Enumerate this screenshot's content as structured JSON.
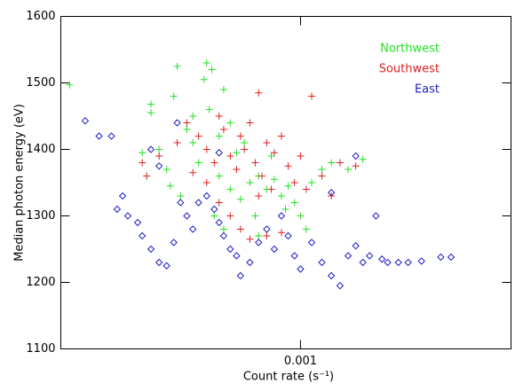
{
  "chart_data": {
    "type": "scatter",
    "x_label": "Count rate (s⁻¹)",
    "y_label": "Median photon energy (eV)",
    "xscale": "log",
    "xlim": [
      0.00013,
      0.006
    ],
    "xticks": [
      0.001
    ],
    "ylim": [
      1100,
      1600
    ],
    "yticks": [
      1100,
      1200,
      1300,
      1400,
      1500,
      1600
    ],
    "legend": "upper right",
    "series": [
      {
        "name": "Northwest",
        "color": "#22e022",
        "marker": "plus",
        "x": [
          0.00014,
          0.00028,
          0.00028,
          0.00035,
          0.00045,
          0.00047,
          0.00044,
          0.00052,
          0.00038,
          0.0004,
          0.00042,
          0.0003,
          0.00032,
          0.00033,
          0.00036,
          0.0005,
          0.00055,
          0.00058,
          0.0006,
          0.00065,
          0.0007,
          0.00075,
          0.0008,
          0.00085,
          0.0009,
          0.00095,
          0.001,
          0.00105,
          0.0011,
          0.0012,
          0.0013,
          0.0015,
          0.0017,
          0.0005,
          0.00055,
          0.00048,
          0.00052,
          0.00062,
          0.00068,
          0.0007,
          0.00046,
          0.0004,
          0.00078,
          0.00088,
          0.00026,
          0.00034
        ],
        "values": [
          1497,
          1468,
          1455,
          1525,
          1530,
          1520,
          1505,
          1490,
          1430,
          1410,
          1380,
          1400,
          1370,
          1345,
          1330,
          1360,
          1340,
          1395,
          1325,
          1350,
          1360,
          1340,
          1355,
          1330,
          1345,
          1320,
          1300,
          1280,
          1350,
          1370,
          1380,
          1370,
          1385,
          1420,
          1440,
          1300,
          1280,
          1410,
          1300,
          1270,
          1460,
          1450,
          1390,
          1310,
          1395,
          1480
        ]
      },
      {
        "name": "Southwest",
        "color": "#e02020",
        "marker": "plus",
        "x": [
          0.00026,
          0.00027,
          0.0003,
          0.00035,
          0.00038,
          0.00042,
          0.00045,
          0.00048,
          0.0005,
          0.00052,
          0.00055,
          0.00058,
          0.0006,
          0.00062,
          0.00065,
          0.00068,
          0.0007,
          0.00072,
          0.00075,
          0.00078,
          0.0008,
          0.00085,
          0.0009,
          0.00095,
          0.001,
          0.0011,
          0.00105,
          0.0012,
          0.0013,
          0.0014,
          0.0016,
          0.0005,
          0.00055,
          0.0006,
          0.00065,
          0.00075,
          0.00085,
          0.0007,
          0.00045,
          0.0004
        ],
        "values": [
          1380,
          1360,
          1390,
          1410,
          1440,
          1420,
          1400,
          1380,
          1450,
          1430,
          1390,
          1370,
          1420,
          1400,
          1440,
          1380,
          1485,
          1360,
          1410,
          1340,
          1395,
          1420,
          1375,
          1350,
          1390,
          1480,
          1340,
          1360,
          1330,
          1380,
          1375,
          1320,
          1300,
          1280,
          1265,
          1270,
          1275,
          1330,
          1350,
          1365
        ]
      },
      {
        "name": "East",
        "color": "#2020c8",
        "marker": "diamond",
        "x": [
          0.00016,
          0.00018,
          0.0002,
          0.00022,
          0.00021,
          0.00023,
          0.00025,
          0.00026,
          0.00028,
          0.0003,
          0.00032,
          0.00034,
          0.00036,
          0.00038,
          0.0004,
          0.00042,
          0.00045,
          0.00048,
          0.0005,
          0.00052,
          0.00055,
          0.00058,
          0.0006,
          0.00065,
          0.0007,
          0.00075,
          0.0008,
          0.00085,
          0.0009,
          0.00095,
          0.001,
          0.0011,
          0.0012,
          0.0013,
          0.0014,
          0.0015,
          0.0016,
          0.0017,
          0.0018,
          0.002,
          0.0021,
          0.0023,
          0.0025,
          0.0028,
          0.0033,
          0.0036,
          0.00028,
          0.00035,
          0.0003,
          0.0005,
          0.0016,
          0.0019,
          0.0013
        ],
        "values": [
          1443,
          1420,
          1420,
          1330,
          1310,
          1300,
          1290,
          1270,
          1250,
          1230,
          1225,
          1260,
          1320,
          1300,
          1280,
          1320,
          1330,
          1310,
          1290,
          1270,
          1250,
          1240,
          1210,
          1230,
          1260,
          1280,
          1250,
          1300,
          1270,
          1240,
          1220,
          1260,
          1230,
          1210,
          1195,
          1240,
          1255,
          1230,
          1240,
          1235,
          1230,
          1230,
          1230,
          1232,
          1238,
          1238,
          1400,
          1440,
          1375,
          1395,
          1390,
          1300,
          1335
        ]
      }
    ]
  }
}
